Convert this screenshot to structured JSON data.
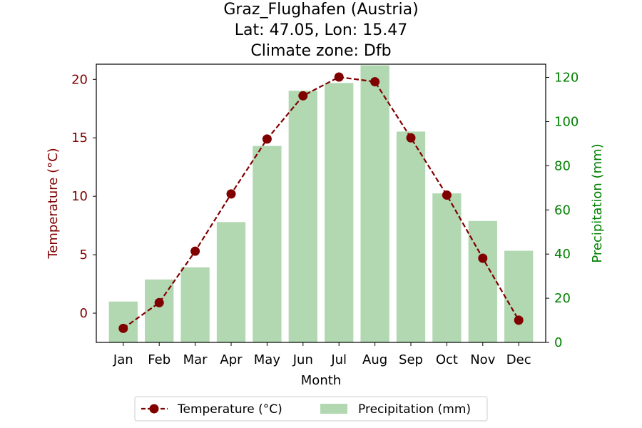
{
  "chart_data": {
    "type": "bar+line",
    "title_lines": [
      "Graz_Flughafen (Austria)",
      "Lat: 47.05, Lon: 15.47",
      "Climate zone: Dfb"
    ],
    "categories": [
      "Jan",
      "Feb",
      "Mar",
      "Apr",
      "May",
      "Jun",
      "Jul",
      "Aug",
      "Sep",
      "Oct",
      "Nov",
      "Dec"
    ],
    "xlabel": "Month",
    "series": [
      {
        "name": "Temperature (°C)",
        "type": "line",
        "axis": "left",
        "color": "#800000",
        "values": [
          -1.3,
          0.9,
          5.3,
          10.2,
          14.9,
          18.6,
          20.2,
          19.8,
          15.0,
          10.1,
          4.7,
          -0.6
        ]
      },
      {
        "name": "Precipitation (mm)",
        "type": "bar",
        "axis": "right",
        "color": "#b2d8b2",
        "values": [
          18.5,
          28.5,
          34,
          54.5,
          89,
          114,
          117.5,
          125.5,
          95.5,
          67.5,
          55,
          41.5
        ]
      }
    ],
    "left_axis": {
      "label": "Temperature (°C)",
      "color": "#800000",
      "ylim": [
        -2.5,
        21.3
      ],
      "ticks": [
        0,
        5,
        10,
        15,
        20
      ],
      "tick_labels": [
        "0",
        "5",
        "10",
        "15",
        "20"
      ]
    },
    "right_axis": {
      "label": "Precipitation (mm)",
      "color": "#008000",
      "ylim": [
        0,
        126
      ],
      "ticks": [
        0,
        20,
        40,
        60,
        80,
        100,
        120
      ],
      "tick_labels": [
        "0",
        "20",
        "40",
        "60",
        "80",
        "100",
        "120"
      ]
    },
    "legend": {
      "placement": "bottom-center",
      "entries": [
        "Temperature (°C)",
        "Precipitation (mm)"
      ]
    },
    "grid": false
  }
}
